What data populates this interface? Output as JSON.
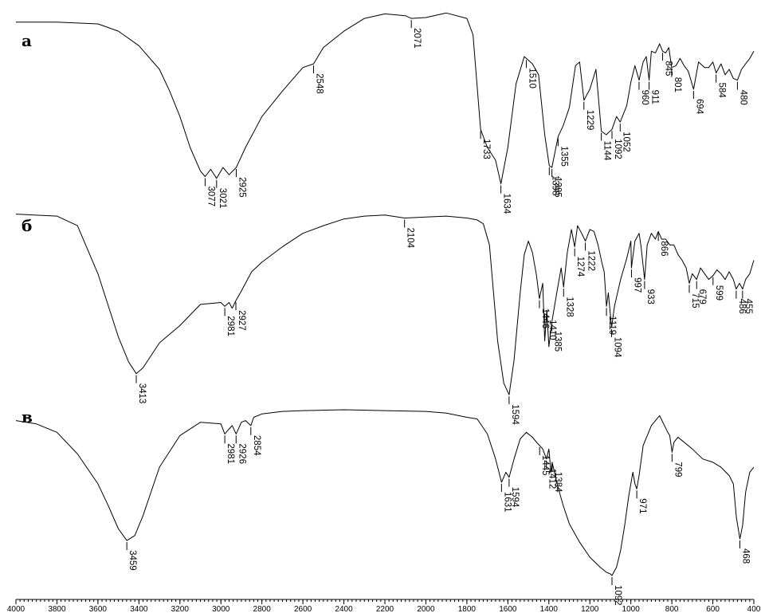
{
  "chart_data": {
    "type": "line",
    "title": "",
    "xlabel": "",
    "ylabel": "",
    "xlim": [
      4000,
      400
    ],
    "x_reversed": true,
    "x_ticks": [
      "4000",
      "3800",
      "3600",
      "3400",
      "3200",
      "3000",
      "2800",
      "2600",
      "2400",
      "2200",
      "2000",
      "1800",
      "1600",
      "1400",
      "1200",
      "1000",
      "800",
      "600",
      "400"
    ],
    "series": [
      {
        "name": "а",
        "x": [
          4000,
          3800,
          3600,
          3500,
          3400,
          3300,
          3250,
          3200,
          3150,
          3100,
          3077,
          3050,
          3021,
          2990,
          2960,
          2925,
          2880,
          2800,
          2700,
          2600,
          2548,
          2500,
          2400,
          2300,
          2200,
          2100,
          2071,
          2000,
          1900,
          1800,
          1770,
          1733,
          1700,
          1660,
          1634,
          1600,
          1560,
          1520,
          1510,
          1480,
          1450,
          1420,
          1398,
          1385,
          1355,
          1330,
          1300,
          1270,
          1250,
          1229,
          1200,
          1170,
          1144,
          1120,
          1092,
          1070,
          1052,
          1020,
          1000,
          980,
          960,
          940,
          925,
          911,
          900,
          880,
          860,
          845,
          830,
          815,
          801,
          780,
          760,
          740,
          720,
          694,
          670,
          640,
          620,
          600,
          584,
          560,
          540,
          520,
          500,
          480,
          460,
          440,
          420,
          400
        ],
        "y": [
          0.94,
          0.94,
          0.93,
          0.89,
          0.81,
          0.68,
          0.56,
          0.42,
          0.25,
          0.12,
          0.09,
          0.13,
          0.08,
          0.14,
          0.1,
          0.14,
          0.25,
          0.42,
          0.56,
          0.69,
          0.71,
          0.8,
          0.89,
          0.96,
          0.985,
          0.975,
          0.96,
          0.965,
          0.99,
          0.96,
          0.87,
          0.35,
          0.25,
          0.18,
          0.05,
          0.25,
          0.6,
          0.75,
          0.74,
          0.71,
          0.65,
          0.32,
          0.15,
          0.14,
          0.31,
          0.37,
          0.47,
          0.7,
          0.72,
          0.51,
          0.57,
          0.68,
          0.34,
          0.32,
          0.35,
          0.42,
          0.39,
          0.48,
          0.61,
          0.7,
          0.62,
          0.72,
          0.75,
          0.62,
          0.78,
          0.77,
          0.82,
          0.78,
          0.77,
          0.8,
          0.69,
          0.7,
          0.74,
          0.7,
          0.67,
          0.57,
          0.72,
          0.69,
          0.69,
          0.72,
          0.66,
          0.71,
          0.65,
          0.68,
          0.63,
          0.62,
          0.68,
          0.71,
          0.74,
          0.78
        ]
      },
      {
        "name": "б",
        "x": [
          4000,
          3800,
          3700,
          3600,
          3500,
          3450,
          3413,
          3380,
          3300,
          3200,
          3100,
          3000,
          2981,
          2960,
          2945,
          2927,
          2900,
          2850,
          2800,
          2700,
          2600,
          2500,
          2400,
          2300,
          2200,
          2104,
          2000,
          1900,
          1800,
          1750,
          1720,
          1690,
          1650,
          1620,
          1594,
          1570,
          1540,
          1520,
          1500,
          1480,
          1460,
          1446,
          1430,
          1420,
          1410,
          1400,
          1385,
          1360,
          1340,
          1328,
          1310,
          1290,
          1274,
          1260,
          1240,
          1222,
          1200,
          1180,
          1160,
          1140,
          1130,
          1119,
          1110,
          1094,
          1080,
          1050,
          1020,
          1000,
          997,
          980,
          960,
          950,
          933,
          920,
          900,
          880,
          866,
          850,
          830,
          810,
          790,
          770,
          750,
          730,
          715,
          700,
          679,
          660,
          640,
          620,
          599,
          580,
          560,
          540,
          520,
          500,
          486,
          470,
          455,
          440,
          420,
          400
        ],
        "y": [
          0.96,
          0.95,
          0.9,
          0.65,
          0.32,
          0.19,
          0.13,
          0.16,
          0.29,
          0.38,
          0.49,
          0.5,
          0.48,
          0.5,
          0.47,
          0.51,
          0.56,
          0.66,
          0.71,
          0.79,
          0.86,
          0.9,
          0.935,
          0.95,
          0.955,
          0.94,
          0.945,
          0.95,
          0.94,
          0.93,
          0.91,
          0.8,
          0.3,
          0.08,
          0.02,
          0.2,
          0.55,
          0.75,
          0.82,
          0.76,
          0.64,
          0.52,
          0.6,
          0.3,
          0.46,
          0.27,
          0.4,
          0.56,
          0.68,
          0.58,
          0.76,
          0.88,
          0.79,
          0.9,
          0.86,
          0.82,
          0.88,
          0.87,
          0.8,
          0.7,
          0.66,
          0.48,
          0.55,
          0.37,
          0.48,
          0.62,
          0.73,
          0.82,
          0.68,
          0.82,
          0.86,
          0.79,
          0.62,
          0.8,
          0.86,
          0.83,
          0.87,
          0.83,
          0.83,
          0.8,
          0.8,
          0.75,
          0.72,
          0.68,
          0.6,
          0.65,
          0.62,
          0.68,
          0.65,
          0.62,
          0.64,
          0.67,
          0.65,
          0.62,
          0.66,
          0.62,
          0.57,
          0.6,
          0.57,
          0.62,
          0.65,
          0.72
        ]
      },
      {
        "name": "в",
        "x": [
          4000,
          3900,
          3800,
          3700,
          3600,
          3550,
          3500,
          3459,
          3420,
          3380,
          3300,
          3200,
          3100,
          3000,
          2981,
          2960,
          2945,
          2926,
          2900,
          2880,
          2854,
          2840,
          2800,
          2700,
          2600,
          2400,
          2200,
          2000,
          1900,
          1800,
          1750,
          1700,
          1660,
          1631,
          1610,
          1594,
          1570,
          1540,
          1510,
          1480,
          1460,
          1445,
          1430,
          1412,
          1400,
          1390,
          1384,
          1360,
          1330,
          1300,
          1250,
          1200,
          1150,
          1120,
          1100,
          1092,
          1070,
          1050,
          1030,
          1010,
          990,
          980,
          971,
          960,
          940,
          900,
          860,
          840,
          820,
          810,
          799,
          790,
          770,
          750,
          700,
          650,
          600,
          560,
          520,
          500,
          485,
          468,
          455,
          440,
          420,
          400
        ],
        "y": [
          0.93,
          0.91,
          0.86,
          0.73,
          0.55,
          0.42,
          0.28,
          0.21,
          0.24,
          0.36,
          0.65,
          0.84,
          0.92,
          0.91,
          0.85,
          0.88,
          0.9,
          0.85,
          0.92,
          0.93,
          0.9,
          0.95,
          0.97,
          0.985,
          0.99,
          0.995,
          0.99,
          0.985,
          0.975,
          0.95,
          0.94,
          0.85,
          0.7,
          0.56,
          0.62,
          0.59,
          0.7,
          0.82,
          0.86,
          0.83,
          0.8,
          0.78,
          0.76,
          0.7,
          0.76,
          0.62,
          0.68,
          0.55,
          0.42,
          0.31,
          0.2,
          0.11,
          0.05,
          0.02,
          0.01,
          0.0,
          0.05,
          0.15,
          0.3,
          0.48,
          0.62,
          0.55,
          0.52,
          0.6,
          0.78,
          0.9,
          0.96,
          0.91,
          0.86,
          0.84,
          0.74,
          0.8,
          0.83,
          0.81,
          0.76,
          0.7,
          0.68,
          0.65,
          0.6,
          0.55,
          0.35,
          0.22,
          0.3,
          0.5,
          0.62,
          0.65
        ]
      }
    ],
    "peak_labels": [
      {
        "series": "а",
        "items": [
          {
            "text": "3077",
            "x": 3077
          },
          {
            "text": "3021",
            "x": 3021
          },
          {
            "text": "2925",
            "x": 2925
          },
          {
            "text": "2548",
            "x": 2548
          },
          {
            "text": "2071",
            "x": 2071
          },
          {
            "text": "1733",
            "x": 1733
          },
          {
            "text": "1634",
            "x": 1634
          },
          {
            "text": "1510",
            "x": 1510
          },
          {
            "text": "1398",
            "x": 1398
          },
          {
            "text": "1385",
            "x": 1385
          },
          {
            "text": "1355",
            "x": 1355
          },
          {
            "text": "1229",
            "x": 1229
          },
          {
            "text": "1144",
            "x": 1144
          },
          {
            "text": "1092",
            "x": 1092
          },
          {
            "text": "1052",
            "x": 1052
          },
          {
            "text": "960",
            "x": 960
          },
          {
            "text": "911",
            "x": 911
          },
          {
            "text": "845",
            "x": 845
          },
          {
            "text": "801",
            "x": 801
          },
          {
            "text": "694",
            "x": 694
          },
          {
            "text": "584",
            "x": 584
          },
          {
            "text": "480",
            "x": 480
          }
        ]
      },
      {
        "series": "б",
        "items": [
          {
            "text": "3413",
            "x": 3413
          },
          {
            "text": "2981",
            "x": 2981
          },
          {
            "text": "2927",
            "x": 2927
          },
          {
            "text": "2104",
            "x": 2104
          },
          {
            "text": "1594",
            "x": 1594
          },
          {
            "text": "1446",
            "x": 1446
          },
          {
            "text": "1410",
            "x": 1410
          },
          {
            "text": "1385",
            "x": 1385
          },
          {
            "text": "1328",
            "x": 1328
          },
          {
            "text": "1274",
            "x": 1274
          },
          {
            "text": "1222",
            "x": 1222
          },
          {
            "text": "1119",
            "x": 1119
          },
          {
            "text": "1094",
            "x": 1094
          },
          {
            "text": "997",
            "x": 997
          },
          {
            "text": "933",
            "x": 933
          },
          {
            "text": "866",
            "x": 866
          },
          {
            "text": "715",
            "x": 715
          },
          {
            "text": "679",
            "x": 679
          },
          {
            "text": "599",
            "x": 599
          },
          {
            "text": "486",
            "x": 486
          },
          {
            "text": "455",
            "x": 455
          }
        ]
      },
      {
        "series": "в",
        "items": [
          {
            "text": "3459",
            "x": 3459
          },
          {
            "text": "2981",
            "x": 2981
          },
          {
            "text": "2926",
            "x": 2926
          },
          {
            "text": "2854",
            "x": 2854
          },
          {
            "text": "1631",
            "x": 1631
          },
          {
            "text": "1594",
            "x": 1594
          },
          {
            "text": "1445",
            "x": 1445
          },
          {
            "text": "1412",
            "x": 1412
          },
          {
            "text": "1384",
            "x": 1384
          },
          {
            "text": "1092",
            "x": 1092
          },
          {
            "text": "971",
            "x": 971
          },
          {
            "text": "799",
            "x": 799
          },
          {
            "text": "468",
            "x": 468
          }
        ]
      }
    ]
  }
}
